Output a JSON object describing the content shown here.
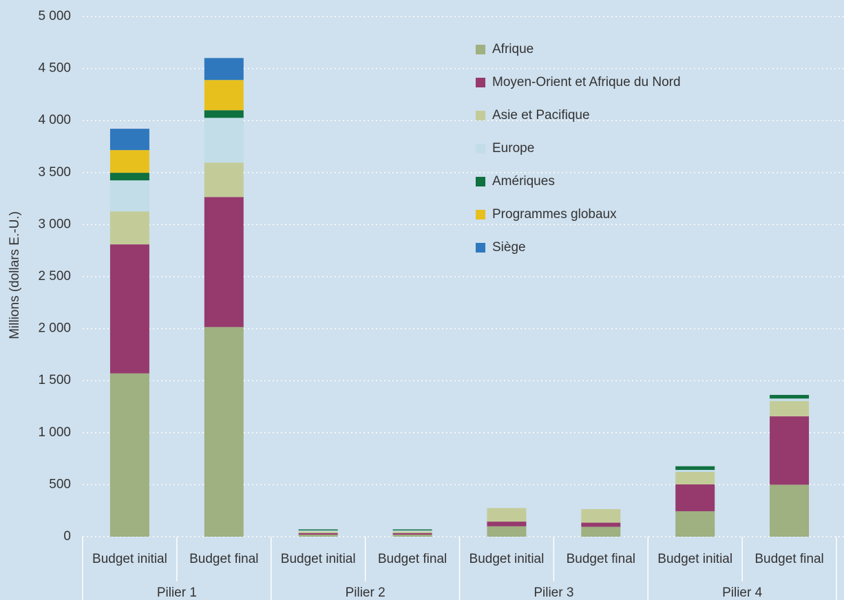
{
  "chart_data": {
    "type": "stacked_bar",
    "y_label": "Millions (dollars E.-U.)",
    "categories": [
      "Budget initial",
      "Budget final",
      "Budget initial",
      "Budget final",
      "Budget initial",
      "Budget final",
      "Budget initial",
      "Budget final"
    ],
    "groups": [
      "Pilier 1",
      "Pilier 2",
      "Pilier 3",
      "Pilier 4"
    ],
    "series": [
      {
        "name": "Afrique",
        "color": "#9fb081",
        "values": [
          1570,
          2015,
          20,
          20,
          100,
          95,
          245,
          500
        ]
      },
      {
        "name": "Moyen-Orient et Afrique du Nord",
        "color": "#963a6e",
        "values": [
          1240,
          1250,
          15,
          15,
          45,
          40,
          258,
          657
        ]
      },
      {
        "name": "Asie et Pacifique",
        "color": "#c3cc98",
        "values": [
          317,
          331,
          15,
          15,
          130,
          130,
          119,
          146
        ]
      },
      {
        "name": "Europe",
        "color": "#c2dde8",
        "values": [
          298,
          430,
          10,
          10,
          0,
          0,
          20,
          25
        ]
      },
      {
        "name": "Amériques",
        "color": "#0f7040",
        "values": [
          73,
          73,
          10,
          10,
          0,
          0,
          35,
          35
        ]
      },
      {
        "name": "Programmes globaux",
        "color": "#e8c01e",
        "values": [
          218,
          291,
          0,
          0,
          0,
          0,
          0,
          0
        ]
      },
      {
        "name": "Siège",
        "color": "#2f78be",
        "values": [
          205,
          211,
          0,
          0,
          0,
          0,
          0,
          0
        ]
      }
    ],
    "ylim": [
      0,
      5000
    ],
    "yticks": [
      0,
      500,
      {
        "value": 1000,
        "label": "1 000"
      },
      {
        "value": 1500,
        "label": "1 500"
      },
      {
        "value": 2000,
        "label": "2 000"
      },
      {
        "value": 2500,
        "label": "2 500"
      },
      {
        "value": 3000,
        "label": "3 000"
      },
      {
        "value": 3500,
        "label": "3 500"
      },
      {
        "value": 4000,
        "label": "4 000"
      },
      {
        "value": 4500,
        "label": "4 500"
      },
      {
        "value": 5000,
        "label": "5 000"
      }
    ],
    "grid": true
  }
}
